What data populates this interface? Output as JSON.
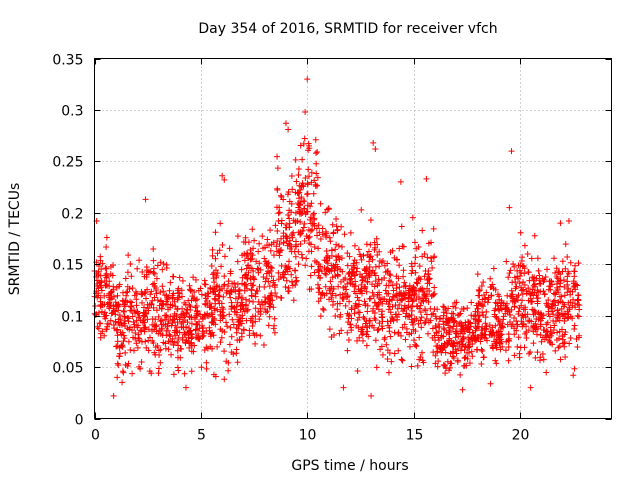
{
  "chart_data": {
    "type": "scatter",
    "title": "Day 354 of 2016, SRMTID for receiver vfch",
    "xlabel": "GPS time / hours",
    "ylabel": "SRMTID / TECUs",
    "xlim": [
      0,
      24.3
    ],
    "ylim": [
      0,
      0.35
    ],
    "xticks": [
      0,
      5,
      10,
      15,
      20
    ],
    "xtick_labels": [
      "0",
      "5",
      "10",
      "15",
      "20"
    ],
    "yticks": [
      0,
      0.05,
      0.1,
      0.15,
      0.2,
      0.25,
      0.3,
      0.35
    ],
    "ytick_labels": [
      "0",
      "0.05",
      "0.1",
      "0.15",
      "0.2",
      "0.25",
      "0.3",
      "0.35"
    ],
    "grid": true,
    "marker": "+",
    "point_color": "#ff0000",
    "x_range_of_data": [
      0,
      22.8
    ],
    "segments": [
      {
        "x0": 0.0,
        "x1": 1.0,
        "center": 0.12,
        "spread": 0.04
      },
      {
        "x0": 1.0,
        "x1": 2.0,
        "center": 0.095,
        "spread": 0.04
      },
      {
        "x0": 2.0,
        "x1": 3.5,
        "center": 0.1,
        "spread": 0.045
      },
      {
        "x0": 3.5,
        "x1": 5.5,
        "center": 0.095,
        "spread": 0.04
      },
      {
        "x0": 5.5,
        "x1": 7.0,
        "center": 0.11,
        "spread": 0.05
      },
      {
        "x0": 7.0,
        "x1": 8.5,
        "center": 0.125,
        "spread": 0.05
      },
      {
        "x0": 8.5,
        "x1": 9.5,
        "center": 0.17,
        "spread": 0.06
      },
      {
        "x0": 9.5,
        "x1": 10.5,
        "center": 0.2,
        "spread": 0.06
      },
      {
        "x0": 10.5,
        "x1": 11.5,
        "center": 0.15,
        "spread": 0.05
      },
      {
        "x0": 11.5,
        "x1": 13.5,
        "center": 0.125,
        "spread": 0.055
      },
      {
        "x0": 13.5,
        "x1": 15.0,
        "center": 0.115,
        "spread": 0.05
      },
      {
        "x0": 15.0,
        "x1": 16.0,
        "center": 0.12,
        "spread": 0.055
      },
      {
        "x0": 16.0,
        "x1": 18.0,
        "center": 0.08,
        "spread": 0.03
      },
      {
        "x0": 18.0,
        "x1": 19.5,
        "center": 0.095,
        "spread": 0.035
      },
      {
        "x0": 19.5,
        "x1": 21.5,
        "center": 0.11,
        "spread": 0.045
      },
      {
        "x0": 21.5,
        "x1": 22.8,
        "center": 0.11,
        "spread": 0.045
      }
    ],
    "notable_points": [
      {
        "x": 10.0,
        "y": 0.33
      },
      {
        "x": 9.9,
        "y": 0.298
      },
      {
        "x": 9.0,
        "y": 0.287
      },
      {
        "x": 9.1,
        "y": 0.281
      },
      {
        "x": 10.4,
        "y": 0.271
      },
      {
        "x": 13.1,
        "y": 0.268
      },
      {
        "x": 13.2,
        "y": 0.262
      },
      {
        "x": 19.6,
        "y": 0.26
      },
      {
        "x": 6.0,
        "y": 0.236
      },
      {
        "x": 6.1,
        "y": 0.232
      },
      {
        "x": 15.6,
        "y": 0.233
      },
      {
        "x": 14.4,
        "y": 0.23
      },
      {
        "x": 19.5,
        "y": 0.205
      },
      {
        "x": 2.4,
        "y": 0.213
      },
      {
        "x": 13.0,
        "y": 0.022
      },
      {
        "x": 0.9,
        "y": 0.022
      },
      {
        "x": 11.7,
        "y": 0.03
      },
      {
        "x": 17.3,
        "y": 0.028
      },
      {
        "x": 20.5,
        "y": 0.03
      },
      {
        "x": 4.3,
        "y": 0.03
      },
      {
        "x": 0.1,
        "y": 0.192
      },
      {
        "x": 22.3,
        "y": 0.192
      },
      {
        "x": 21.9,
        "y": 0.19
      },
      {
        "x": 22.5,
        "y": 0.042
      }
    ]
  }
}
